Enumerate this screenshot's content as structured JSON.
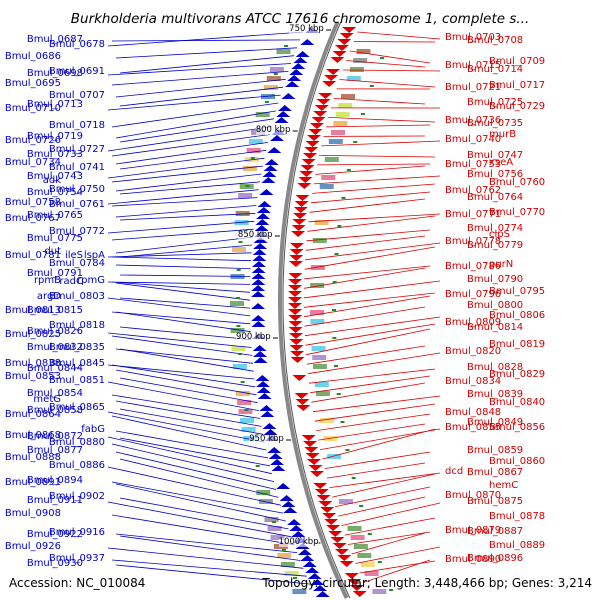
{
  "title": "Burkholderia multivorans ATCC 17616 chromosome 1, complete s...",
  "footer": {
    "accession": "Accession: NC_010084",
    "summary": "Topology: circular; Length: 3,448,466 bp; Genes: 3,214"
  },
  "ticks": [
    "750 kbp",
    "800 kbp",
    "850 kbp",
    "900 kbp",
    "950 kbp",
    "1000 kbp"
  ],
  "left_labels": [
    [
      "Bmul_0678",
      45
    ],
    [
      "Bmul_0687",
      40
    ],
    [
      "Bmul_0686",
      57
    ],
    [
      "Bmul_0691",
      72
    ],
    [
      "Bmul_0698",
      74
    ],
    [
      "Bmul_0695",
      84
    ],
    [
      "Bmul_0707",
      96
    ],
    [
      "Bmul_0713",
      105
    ],
    [
      "Bmul_0710",
      109
    ],
    [
      "Bmul_0718",
      126
    ],
    [
      "Bmul_0719",
      137
    ],
    [
      "Bmul_0726",
      141
    ],
    [
      "Bmul_0727",
      150
    ],
    [
      "Bmul_0733",
      155
    ],
    [
      "Bmul_0734",
      163
    ],
    [
      "Bmul_0741",
      168
    ],
    [
      "Bmul_0743",
      177
    ],
    [
      "adk",
      181
    ],
    [
      "Bmul_0750",
      190
    ],
    [
      "Bmul_0754",
      193
    ],
    [
      "Bmul_0758",
      203
    ],
    [
      "Bmul_0761",
      205
    ],
    [
      "Bmul_0765",
      216
    ],
    [
      "Bmul_0767",
      219
    ],
    [
      "Bmul_0772",
      232
    ],
    [
      "Bmul_0775",
      239
    ],
    [
      "dut",
      252
    ],
    [
      "lspA",
      256
    ],
    [
      "ileS",
      256
    ],
    [
      "Bmul_0781",
      256
    ],
    [
      "Bmul_0784",
      264
    ],
    [
      "Bmul_0791",
      274
    ],
    [
      "rpmB",
      281
    ],
    [
      "rpmG",
      281
    ],
    [
      "radC",
      282
    ],
    [
      "argD",
      297
    ],
    [
      "Bmul_0803",
      297
    ],
    [
      "Bmul_0815",
      311
    ],
    [
      "Bmul_0813",
      311
    ],
    [
      "Bmul_0818",
      326
    ],
    [
      "Bmul_0826",
      332
    ],
    [
      "Bmul_0825",
      335
    ],
    [
      "Bmul_0835",
      348
    ],
    [
      "Bmul_0832",
      348
    ],
    [
      "Bmul_0838",
      364
    ],
    [
      "Bmul_0845",
      364
    ],
    [
      "Bmul_0844",
      369
    ],
    [
      "Bmul_0853",
      377
    ],
    [
      "Bmul_0851",
      381
    ],
    [
      "Bmul_0854",
      394
    ],
    [
      "metG",
      400
    ],
    [
      "Bmul_0865",
      408
    ],
    [
      "Bmul_0858",
      411
    ],
    [
      "Bmul_0864",
      415
    ],
    [
      "fabG",
      430
    ],
    [
      "Bmul_0872",
      437
    ],
    [
      "Bmul_0868",
      436
    ],
    [
      "Bmul_0880",
      443
    ],
    [
      "Bmul_0877",
      451
    ],
    [
      "Bmul_0888",
      458
    ],
    [
      "Bmul_0886",
      466
    ],
    [
      "Bmul_0894",
      481
    ],
    [
      "Bmul_0891",
      483
    ],
    [
      "Bmul_0902",
      497
    ],
    [
      "Bmul_0911",
      501
    ],
    [
      "Bmul_0908",
      514
    ],
    [
      "Bmul_0916",
      533
    ],
    [
      "Bmul_0922",
      535
    ],
    [
      "Bmul_0926",
      547
    ],
    [
      "Bmul_0937",
      559
    ],
    [
      "Bmul_0930",
      564
    ]
  ],
  "right_labels": [
    [
      "Bmul_0703",
      38
    ],
    [
      "Bmul_0708",
      41
    ],
    [
      "Bmul_0709",
      62
    ],
    [
      "Bmul_0715",
      66
    ],
    [
      "Bmul_0714",
      70
    ],
    [
      "Bmul_0717",
      86
    ],
    [
      "Bmul_0721",
      88
    ],
    [
      "Bmul_0725",
      103
    ],
    [
      "Bmul_0729",
      107
    ],
    [
      "Bmul_0736",
      121
    ],
    [
      "Bmul_0735",
      124
    ],
    [
      "murB",
      135
    ],
    [
      "Bmul_0740",
      140
    ],
    [
      "Bmul_0747",
      156
    ],
    [
      "xseA",
      163
    ],
    [
      "Bmul_0753",
      165
    ],
    [
      "Bmul_0756",
      175
    ],
    [
      "Bmul_0760",
      183
    ],
    [
      "Bmul_0762",
      191
    ],
    [
      "Bmul_0764",
      198
    ],
    [
      "Bmul_0770",
      213
    ],
    [
      "Bmul_0771",
      215
    ],
    [
      "Bmul_0774",
      229
    ],
    [
      "clpS",
      235
    ],
    [
      "Bmul_0778",
      242
    ],
    [
      "Bmul_0779",
      246
    ],
    [
      "purN",
      265
    ],
    [
      "Bmul_0786",
      267
    ],
    [
      "Bmul_0790",
      280
    ],
    [
      "Bmul_0795",
      292
    ],
    [
      "Bmul_0796",
      295
    ],
    [
      "Bmul_0800",
      306
    ],
    [
      "Bmul_0806",
      316
    ],
    [
      "Bmul_0809",
      323
    ],
    [
      "Bmul_0814",
      328
    ],
    [
      "Bmul_0819",
      345
    ],
    [
      "Bmul_0820",
      352
    ],
    [
      "Bmul_0828",
      368
    ],
    [
      "Bmul_0829",
      375
    ],
    [
      "Bmul_0834",
      382
    ],
    [
      "Bmul_0839",
      395
    ],
    [
      "Bmul_0840",
      403
    ],
    [
      "Bmul_0848",
      413
    ],
    [
      "Bmul_0849",
      423
    ],
    [
      "Bmul_0856",
      428
    ],
    [
      "Bmul_0855",
      428
    ],
    [
      "Bmul_0859",
      451
    ],
    [
      "Bmul_0860",
      462
    ],
    [
      "dcd",
      472
    ],
    [
      "Bmul_0867",
      473
    ],
    [
      "hemC",
      486
    ],
    [
      "Bmul_0870",
      496
    ],
    [
      "Bmul_0875",
      502
    ],
    [
      "Bmul_0878",
      517
    ],
    [
      "Bmul_0879",
      531
    ],
    [
      "Bmul_0887",
      532
    ],
    [
      "Bmul_0889",
      546
    ],
    [
      "Bmul_0890",
      560
    ],
    [
      "Bmul_0896",
      559
    ]
  ],
  "colors": {
    "forward": "#0000cc",
    "reverse": "#dd0000",
    "backbone": "#888888",
    "tick_mark": "#228b22"
  }
}
